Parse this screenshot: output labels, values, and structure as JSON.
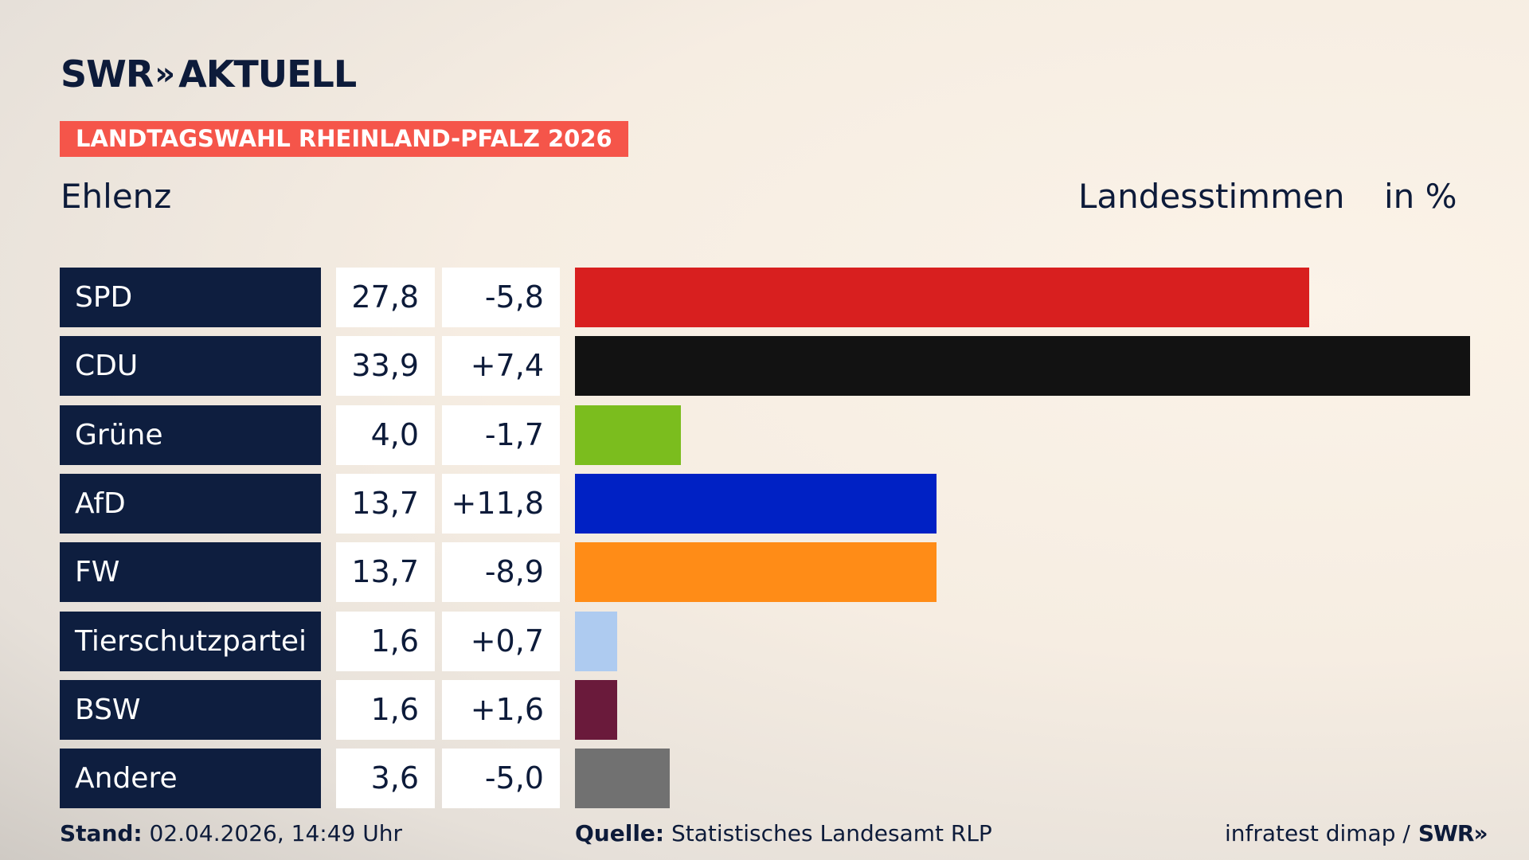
{
  "brand": {
    "name": "SWR",
    "chevrons": "»",
    "product": "AKTUELL"
  },
  "badge": "LANDTAGSWAHL RHEINLAND-PFALZ 2026",
  "place": "Ehlenz",
  "measure": "Landesstimmen",
  "unit": "in %",
  "chart_data": {
    "type": "bar",
    "orientation": "horizontal",
    "categories": [
      "SPD",
      "CDU",
      "Grüne",
      "AfD",
      "FW",
      "Tierschutzpartei",
      "BSW",
      "Andere"
    ],
    "values": [
      27.8,
      33.9,
      4.0,
      13.7,
      13.7,
      1.6,
      1.6,
      3.6
    ],
    "value_labels": [
      "27,8",
      "33,9",
      "4,0",
      "13,7",
      "13,7",
      "1,6",
      "1,6",
      "3,6"
    ],
    "diff_labels": [
      "-5,8",
      "+7,4",
      "-1,7",
      "+11,8",
      "-8,9",
      "+0,7",
      "+1,6",
      "-5,0"
    ],
    "colors": [
      "#d81f1f",
      "#121212",
      "#7bbd1e",
      "#0021c4",
      "#ff8c17",
      "#aecbf0",
      "#6a1a3b",
      "#717171"
    ],
    "xlim": [
      0,
      33.9
    ],
    "grid": false,
    "legend": "none"
  },
  "footer": {
    "stand_label": "Stand:",
    "stand_value": "02.04.2026, 14:49 Uhr",
    "source_label": "Quelle:",
    "source_value": "Statistisches Landesamt RLP",
    "credit": "infratest dimap /",
    "credit_brand": "SWR",
    "credit_chevrons": "»"
  }
}
